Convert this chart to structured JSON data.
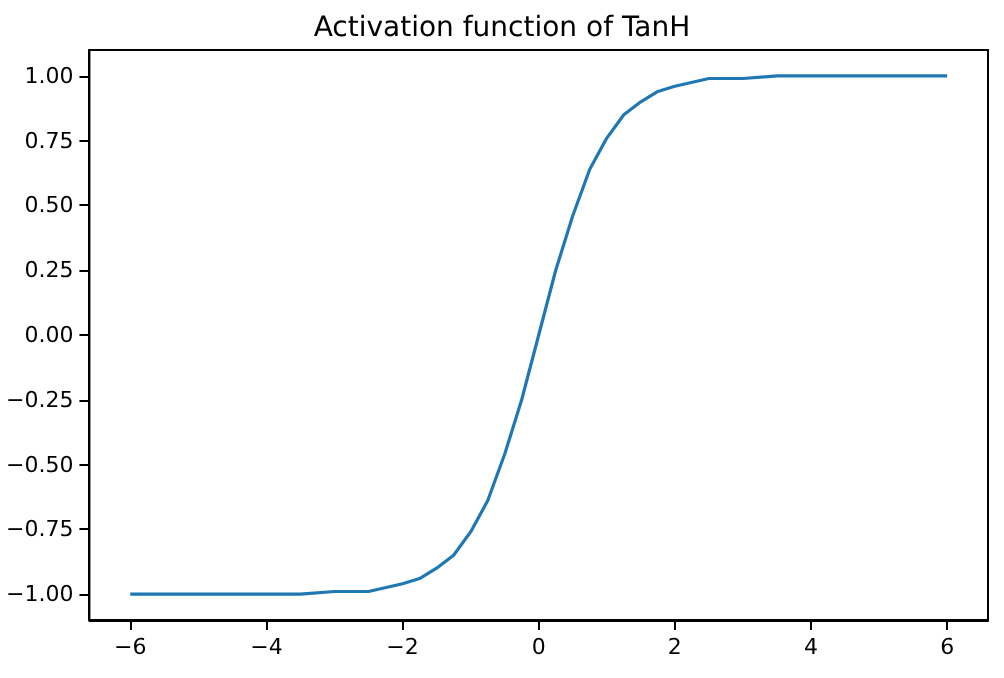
{
  "chart_data": {
    "type": "line",
    "title": "Activation function of TanH",
    "x": [
      -6,
      -5,
      -4,
      -3.5,
      -3,
      -2.5,
      -2,
      -1.75,
      -1.5,
      -1.25,
      -1,
      -0.75,
      -0.5,
      -0.25,
      0,
      0.25,
      0.5,
      0.75,
      1,
      1.25,
      1.5,
      1.75,
      2,
      2.5,
      3,
      3.5,
      4,
      5,
      6
    ],
    "series": [
      {
        "color": "#1f77b4",
        "values": [
          -1.0,
          -1.0,
          -1.0,
          -1.0,
          -0.99,
          -0.99,
          -0.96,
          -0.94,
          -0.9,
          -0.85,
          -0.76,
          -0.64,
          -0.46,
          -0.25,
          0,
          0.25,
          0.46,
          0.64,
          0.76,
          0.85,
          0.9,
          0.94,
          0.96,
          0.99,
          0.99,
          1.0,
          1.0,
          1.0,
          1.0
        ]
      }
    ],
    "xlim": [
      -6.6,
      6.6
    ],
    "ylim": [
      -1.1,
      1.1
    ],
    "xticks": [
      -6,
      -4,
      -2,
      0,
      2,
      4,
      6
    ],
    "yticks": [
      {
        "value": -1,
        "label": "−1.00"
      },
      {
        "value": -0.75,
        "label": "−0.75"
      },
      {
        "value": -0.5,
        "label": "−0.50"
      },
      {
        "value": -0.25,
        "label": "−0.25"
      },
      {
        "value": 0,
        "label": "0.00"
      },
      {
        "value": 0.25,
        "label": "0.25"
      },
      {
        "value": 0.5,
        "label": "0.50"
      },
      {
        "value": 0.75,
        "label": "0.75"
      },
      {
        "value": 1,
        "label": "1.00"
      }
    ]
  }
}
